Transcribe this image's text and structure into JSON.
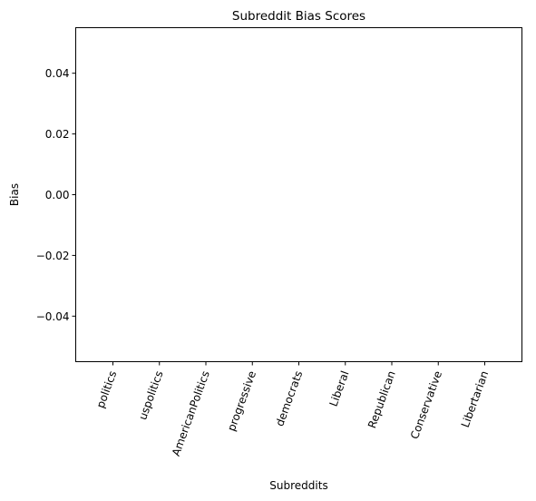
{
  "chart_data": {
    "type": "bar",
    "title": "Subreddit Bias Scores",
    "xlabel": "Subreddits",
    "ylabel": "Bias",
    "categories": [
      "politics",
      "uspolitics",
      "AmericanPolitics",
      "progressive",
      "democrats",
      "Liberal",
      "Republican",
      "Conservative",
      "Libertarian"
    ],
    "values": [
      0,
      0,
      0,
      0,
      0,
      0,
      0,
      0,
      0
    ],
    "ylim": [
      -0.055,
      0.055
    ],
    "yticks": [
      -0.04,
      -0.02,
      0.0,
      0.02,
      0.04
    ],
    "ytick_labels": [
      "−0.04",
      "−0.02",
      "0.00",
      "0.02",
      "0.04"
    ],
    "grid": false,
    "legend": "none"
  }
}
